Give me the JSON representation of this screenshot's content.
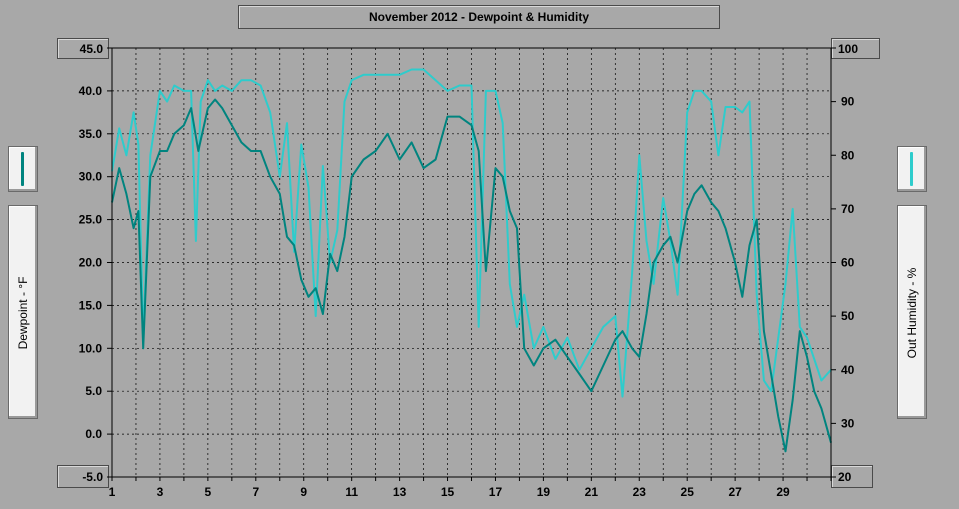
{
  "chart_data": {
    "type": "line",
    "title": "November 2012 - Dewpoint & Humidity",
    "ylabel_left": "Dewpoint - °F",
    "ylabel_right": "Out Humidity - %",
    "y_left_range": [
      -5,
      45
    ],
    "y_right_range": [
      20,
      100
    ],
    "y_left_ticks": [
      "45.0",
      "40.0",
      "35.0",
      "30.0",
      "25.0",
      "20.0",
      "15.0",
      "10.0",
      "5.0",
      "0.0",
      "-5.0"
    ],
    "y_right_ticks": [
      "100",
      "90",
      "80",
      "70",
      "60",
      "50",
      "40",
      "30",
      "20"
    ],
    "x_range": [
      1,
      31
    ],
    "x_ticks": [
      "1",
      "3",
      "5",
      "7",
      "9",
      "11",
      "13",
      "15",
      "17",
      "19",
      "21",
      "23",
      "25",
      "27",
      "29"
    ],
    "grid": true,
    "legend": "side panels",
    "series": [
      {
        "name": "Dewpoint - °F",
        "axis": "left",
        "color": "#00847f",
        "x": [
          1.0,
          1.3,
          1.6,
          1.9,
          2.1,
          2.3,
          2.6,
          3.0,
          3.3,
          3.6,
          4.0,
          4.3,
          4.6,
          5.0,
          5.3,
          5.6,
          6.0,
          6.4,
          6.8,
          7.2,
          7.6,
          8.0,
          8.3,
          8.6,
          8.9,
          9.2,
          9.5,
          9.8,
          10.1,
          10.4,
          10.7,
          11.0,
          11.5,
          12.0,
          12.5,
          13.0,
          13.5,
          14.0,
          14.5,
          15.0,
          15.5,
          16.0,
          16.3,
          16.6,
          17.0,
          17.3,
          17.6,
          17.9,
          18.2,
          18.6,
          19.0,
          19.5,
          20.0,
          20.5,
          21.0,
          21.5,
          22.0,
          22.3,
          22.7,
          23.0,
          23.3,
          23.6,
          24.0,
          24.3,
          24.6,
          25.0,
          25.3,
          25.6,
          26.0,
          26.3,
          26.6,
          27.0,
          27.3,
          27.6,
          27.9,
          28.2,
          28.5,
          28.8,
          29.1,
          29.4,
          29.7,
          30.0,
          30.3,
          30.6,
          31.0
        ],
        "values": [
          27,
          31,
          28,
          24,
          26,
          10,
          30,
          33,
          33,
          35,
          36,
          38,
          33,
          38,
          39,
          38,
          36,
          34,
          33,
          33,
          30,
          28,
          23,
          22,
          18,
          16,
          17,
          14,
          21,
          19,
          23,
          30,
          32,
          33,
          35,
          32,
          34,
          31,
          32,
          37,
          37,
          36,
          33,
          19,
          31,
          30,
          26,
          24,
          10,
          8,
          10,
          11,
          9,
          7,
          5,
          8,
          11,
          12,
          10,
          9,
          14,
          20,
          22,
          23,
          20,
          26,
          28,
          29,
          27,
          26,
          24,
          20,
          16,
          22,
          25,
          12,
          7,
          2,
          -2,
          4,
          12,
          9,
          5,
          3,
          -1
        ]
      },
      {
        "name": "Out Humidity - %",
        "axis": "right",
        "color": "#2ecccc",
        "x": [
          1.0,
          1.3,
          1.6,
          1.9,
          2.1,
          2.3,
          2.6,
          3.0,
          3.3,
          3.6,
          4.0,
          4.3,
          4.5,
          4.7,
          5.0,
          5.3,
          5.6,
          6.0,
          6.4,
          6.8,
          7.2,
          7.6,
          8.0,
          8.3,
          8.6,
          8.9,
          9.2,
          9.5,
          9.8,
          10.1,
          10.4,
          10.7,
          11.0,
          11.5,
          12.0,
          12.5,
          13.0,
          13.5,
          14.0,
          14.5,
          15.0,
          15.5,
          16.0,
          16.3,
          16.6,
          17.0,
          17.3,
          17.6,
          17.9,
          18.2,
          18.6,
          19.0,
          19.5,
          20.0,
          20.5,
          21.0,
          21.5,
          22.0,
          22.3,
          22.7,
          23.0,
          23.3,
          23.6,
          24.0,
          24.3,
          24.6,
          25.0,
          25.3,
          25.6,
          26.0,
          26.3,
          26.6,
          27.0,
          27.3,
          27.6,
          27.9,
          28.2,
          28.5,
          28.8,
          29.1,
          29.4,
          29.7,
          30.0,
          30.3,
          30.6,
          31.0
        ],
        "values": [
          77,
          85,
          80,
          88,
          82,
          46,
          80,
          92,
          90,
          93,
          92,
          92,
          64,
          90,
          94,
          92,
          93,
          92,
          94,
          94,
          93,
          88,
          76,
          86,
          62,
          82,
          74,
          50,
          78,
          60,
          66,
          90,
          94,
          95,
          95,
          95,
          95,
          96,
          96,
          94,
          92,
          93,
          93,
          48,
          92,
          92,
          86,
          56,
          48,
          54,
          44,
          48,
          42,
          46,
          40,
          44,
          48,
          50,
          35,
          58,
          80,
          64,
          56,
          72,
          64,
          54,
          88,
          92,
          92,
          90,
          80,
          89,
          89,
          88,
          90,
          54,
          38,
          36,
          46,
          56,
          70,
          48,
          46,
          42,
          38,
          40
        ]
      }
    ]
  }
}
